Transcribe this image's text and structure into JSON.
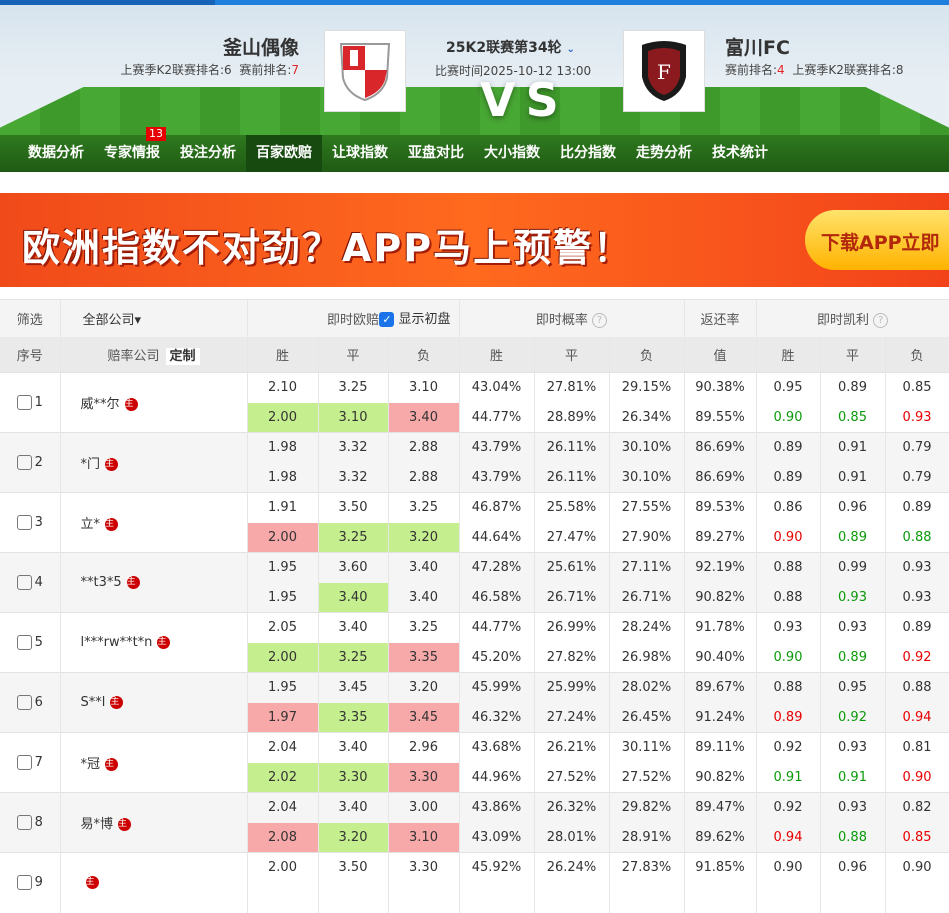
{
  "match": {
    "home": "釜山偶像",
    "home_sub_a": "上赛季K2联赛排名:6",
    "home_sub_b": "赛前排名:",
    "home_rank": "7",
    "away": "富川FC",
    "away_sub_a": "赛前排名:",
    "away_rank": "4",
    "away_sub_b": "上赛季K2联赛排名:8",
    "round": "25K2联赛第34轮",
    "time": "比赛时间2025-10-12 13:00",
    "vs": "VS"
  },
  "nav": [
    {
      "label": "数据分析"
    },
    {
      "label": "专家情报",
      "badge": "13"
    },
    {
      "label": "投注分析"
    },
    {
      "label": "百家欧赔",
      "active": true
    },
    {
      "label": "让球指数"
    },
    {
      "label": "亚盘对比"
    },
    {
      "label": "大小指数"
    },
    {
      "label": "比分指数"
    },
    {
      "label": "走势分析"
    },
    {
      "label": "技术统计"
    }
  ],
  "banner": {
    "text": "欧洲指数不对劲？APP马上预警！",
    "button": "下载APP立即"
  },
  "table": {
    "filter": "筛选",
    "all_companies": "全部公司▾",
    "odds": "即时欧赔",
    "show_initial": "显示初盘",
    "prob": "即时概率",
    "return": "返还率",
    "kelly": "即时凯利",
    "no": "序号",
    "company": "赔率公司",
    "custom": "定制",
    "win": "胜",
    "draw": "平",
    "lose": "负",
    "value": "值",
    "host_mark": "主"
  },
  "colors": {
    "up": "#c5ee8e",
    "down": "#f7a8a8",
    "green_text": "#0a9a0a",
    "red_text": "#e60000"
  },
  "rows": [
    {
      "no": "1",
      "name": "威**尔",
      "cur": [
        "2.10",
        "3.25",
        "3.10"
      ],
      "init": [
        "2.00",
        "3.10",
        "3.40"
      ],
      "hl": [
        "g",
        "g",
        "r"
      ],
      "p1": [
        "43.04%",
        "27.81%",
        "29.15%"
      ],
      "p2": [
        "44.77%",
        "28.89%",
        "26.34%"
      ],
      "r1": "90.38%",
      "r2": "89.55%",
      "k1": [
        "0.95",
        "0.89",
        "0.85"
      ],
      "k2": [
        "0.90",
        "0.85",
        "0.93"
      ],
      "kc": [
        "g",
        "g",
        "r"
      ]
    },
    {
      "no": "2",
      "name": "*门",
      "cur": [
        "1.98",
        "3.32",
        "2.88"
      ],
      "init": [
        "1.98",
        "3.32",
        "2.88"
      ],
      "hl": [
        "",
        "",
        ""
      ],
      "p1": [
        "43.79%",
        "26.11%",
        "30.10%"
      ],
      "p2": [
        "43.79%",
        "26.11%",
        "30.10%"
      ],
      "r1": "86.69%",
      "r2": "86.69%",
      "k1": [
        "0.89",
        "0.91",
        "0.79"
      ],
      "k2": [
        "0.89",
        "0.91",
        "0.79"
      ],
      "kc": [
        "",
        "",
        ""
      ]
    },
    {
      "no": "3",
      "name": "立*",
      "cur": [
        "1.91",
        "3.50",
        "3.25"
      ],
      "init": [
        "2.00",
        "3.25",
        "3.20"
      ],
      "hl": [
        "r",
        "g",
        "g"
      ],
      "p1": [
        "46.87%",
        "25.58%",
        "27.55%"
      ],
      "p2": [
        "44.64%",
        "27.47%",
        "27.90%"
      ],
      "r1": "89.53%",
      "r2": "89.27%",
      "k1": [
        "0.86",
        "0.96",
        "0.89"
      ],
      "k2": [
        "0.90",
        "0.89",
        "0.88"
      ],
      "kc": [
        "r",
        "g",
        "g"
      ]
    },
    {
      "no": "4",
      "name": "**t3*5",
      "cur": [
        "1.95",
        "3.60",
        "3.40"
      ],
      "init": [
        "1.95",
        "3.40",
        "3.40"
      ],
      "hl": [
        "",
        "g",
        ""
      ],
      "p1": [
        "47.28%",
        "25.61%",
        "27.11%"
      ],
      "p2": [
        "46.58%",
        "26.71%",
        "26.71%"
      ],
      "r1": "92.19%",
      "r2": "90.82%",
      "k1": [
        "0.88",
        "0.99",
        "0.93"
      ],
      "k2": [
        "0.88",
        "0.93",
        "0.93"
      ],
      "kc": [
        "",
        "g",
        ""
      ]
    },
    {
      "no": "5",
      "name": "l***rw**t*n",
      "cur": [
        "2.05",
        "3.40",
        "3.25"
      ],
      "init": [
        "2.00",
        "3.25",
        "3.35"
      ],
      "hl": [
        "g",
        "g",
        "r"
      ],
      "p1": [
        "44.77%",
        "26.99%",
        "28.24%"
      ],
      "p2": [
        "45.20%",
        "27.82%",
        "26.98%"
      ],
      "r1": "91.78%",
      "r2": "90.40%",
      "k1": [
        "0.93",
        "0.93",
        "0.89"
      ],
      "k2": [
        "0.90",
        "0.89",
        "0.92"
      ],
      "kc": [
        "g",
        "g",
        "r"
      ]
    },
    {
      "no": "6",
      "name": "S**l",
      "cur": [
        "1.95",
        "3.45",
        "3.20"
      ],
      "init": [
        "1.97",
        "3.35",
        "3.45"
      ],
      "hl": [
        "r",
        "g",
        "r"
      ],
      "p1": [
        "45.99%",
        "25.99%",
        "28.02%"
      ],
      "p2": [
        "46.32%",
        "27.24%",
        "26.45%"
      ],
      "r1": "89.67%",
      "r2": "91.24%",
      "k1": [
        "0.88",
        "0.95",
        "0.88"
      ],
      "k2": [
        "0.89",
        "0.92",
        "0.94"
      ],
      "kc": [
        "r",
        "g",
        "r"
      ]
    },
    {
      "no": "7",
      "name": "*冠",
      "cur": [
        "2.04",
        "3.40",
        "2.96"
      ],
      "init": [
        "2.02",
        "3.30",
        "3.30"
      ],
      "hl": [
        "g",
        "g",
        "r"
      ],
      "p1": [
        "43.68%",
        "26.21%",
        "30.11%"
      ],
      "p2": [
        "44.96%",
        "27.52%",
        "27.52%"
      ],
      "r1": "89.11%",
      "r2": "90.82%",
      "k1": [
        "0.92",
        "0.93",
        "0.81"
      ],
      "k2": [
        "0.91",
        "0.91",
        "0.90"
      ],
      "kc": [
        "g",
        "g",
        "r"
      ]
    },
    {
      "no": "8",
      "name": "易*博",
      "cur": [
        "2.04",
        "3.40",
        "3.00"
      ],
      "init": [
        "2.08",
        "3.20",
        "3.10"
      ],
      "hl": [
        "r",
        "g",
        "r"
      ],
      "p1": [
        "43.86%",
        "26.32%",
        "29.82%"
      ],
      "p2": [
        "43.09%",
        "28.01%",
        "28.91%"
      ],
      "r1": "89.47%",
      "r2": "89.62%",
      "k1": [
        "0.92",
        "0.93",
        "0.82"
      ],
      "k2": [
        "0.94",
        "0.88",
        "0.85"
      ],
      "kc": [
        "r",
        "g",
        "r"
      ]
    },
    {
      "no": "9",
      "name": "",
      "cur": [
        "2.00",
        "3.50",
        "3.30"
      ],
      "p1": [
        "45.92%",
        "26.24%",
        "27.83%"
      ],
      "r1": "91.85%",
      "k1": [
        "0.90",
        "0.96",
        "0.90"
      ]
    }
  ]
}
